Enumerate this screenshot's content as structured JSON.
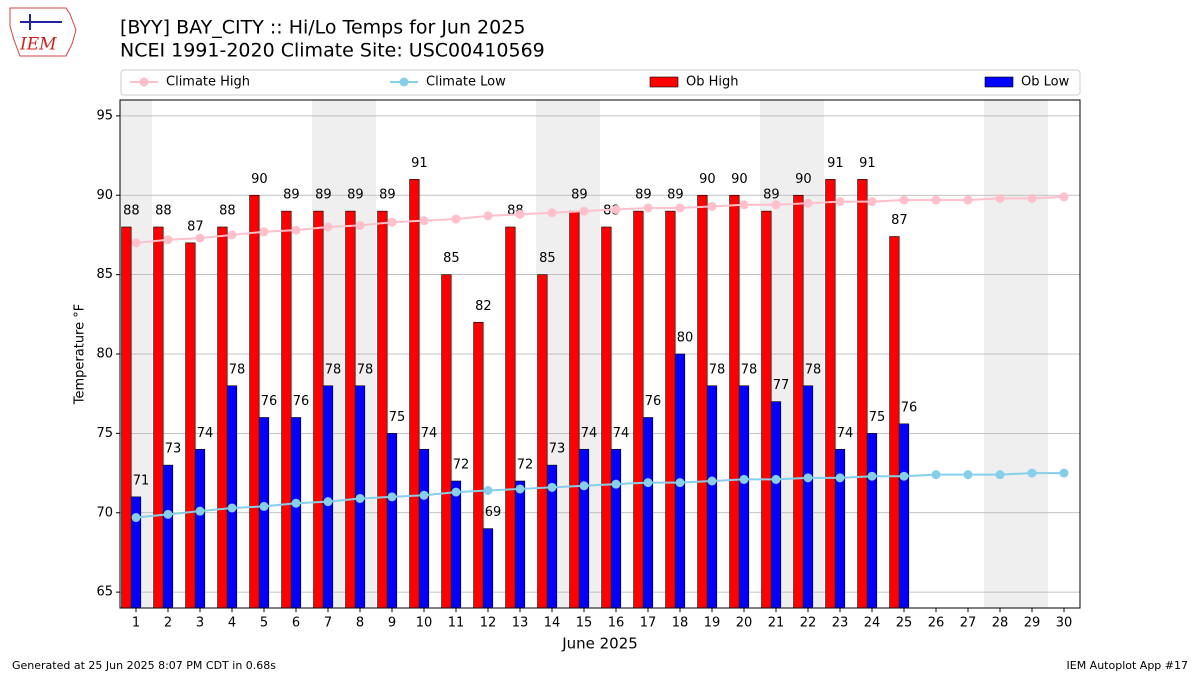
{
  "chart_data": {
    "type": "bar",
    "title": "[BYY] BAY_CITY :: Hi/Lo Temps for Jun 2025",
    "subtitle": "NCEI 1991-2020 Climate Site: USC00410569",
    "x_label": "June 2025",
    "y_label": "Temperature °F",
    "logo_text": "IEM",
    "footer_left": "Generated at 25 Jun 2025 8:07 PM CDT in 0.68s",
    "footer_right": "IEM Autoplot App #17",
    "x": [
      1,
      2,
      3,
      4,
      5,
      6,
      7,
      8,
      9,
      10,
      11,
      12,
      13,
      14,
      15,
      16,
      17,
      18,
      19,
      20,
      21,
      22,
      23,
      24,
      25,
      26,
      27,
      28,
      29,
      30
    ],
    "xlim": [
      0.5,
      30.5
    ],
    "xticks": [
      1,
      2,
      3,
      4,
      5,
      6,
      7,
      8,
      9,
      10,
      11,
      12,
      13,
      14,
      15,
      16,
      17,
      18,
      19,
      20,
      21,
      22,
      23,
      24,
      25,
      26,
      27,
      28,
      29,
      30
    ],
    "ylim": [
      64,
      96
    ],
    "yticks": [
      65,
      70,
      75,
      80,
      85,
      90,
      95
    ],
    "grid": true,
    "legend": "top",
    "shaded_days": [
      1,
      7,
      8,
      14,
      15,
      21,
      22,
      28,
      29
    ],
    "shade_color": "#efefef",
    "series": [
      {
        "name": "Climate High",
        "type": "line",
        "color": "#ffc0cb",
        "values": [
          87.0,
          87.2,
          87.3,
          87.5,
          87.7,
          87.8,
          88.0,
          88.1,
          88.3,
          88.4,
          88.5,
          88.7,
          88.8,
          88.9,
          89.0,
          89.1,
          89.2,
          89.2,
          89.3,
          89.4,
          89.4,
          89.5,
          89.6,
          89.6,
          89.7,
          89.7,
          89.7,
          89.8,
          89.8,
          89.9
        ]
      },
      {
        "name": "Climate Low",
        "type": "line",
        "color": "#87ceeb",
        "values": [
          69.7,
          69.9,
          70.1,
          70.3,
          70.4,
          70.6,
          70.7,
          70.9,
          71.0,
          71.1,
          71.3,
          71.4,
          71.5,
          71.6,
          71.7,
          71.8,
          71.9,
          71.9,
          72.0,
          72.1,
          72.1,
          72.2,
          72.2,
          72.3,
          72.3,
          72.4,
          72.4,
          72.4,
          72.5,
          72.5
        ]
      },
      {
        "name": "Ob High",
        "type": "bar",
        "color": "#ff0000",
        "values": [
          88,
          88,
          87,
          88,
          90,
          89,
          89,
          89,
          89,
          91,
          85,
          82,
          88,
          85,
          89,
          88,
          89,
          89,
          90,
          90,
          89,
          90,
          91,
          91,
          87.4,
          null,
          null,
          null,
          null,
          null
        ],
        "value_labels": [
          "88",
          "88",
          "87",
          "88",
          "90",
          "89",
          "89",
          "89",
          "89",
          "91",
          "85",
          "82",
          "88",
          "85",
          "89",
          "88",
          "89",
          "89",
          "90",
          "90",
          "89",
          "90",
          "91",
          "91",
          "87",
          null,
          null,
          null,
          null,
          null
        ]
      },
      {
        "name": "Ob Low",
        "type": "bar",
        "color": "#0000ff",
        "values": [
          71,
          73,
          74,
          78,
          76,
          76,
          78,
          78,
          75,
          74,
          72,
          69,
          72,
          73,
          74,
          74,
          76,
          80,
          78,
          78,
          77,
          78,
          74,
          75,
          75.6,
          null,
          null,
          null,
          null,
          null
        ],
        "value_labels": [
          "71",
          "73",
          "74",
          "78",
          "76",
          "76",
          "78",
          "78",
          "75",
          "74",
          "72",
          "69",
          "72",
          "73",
          "74",
          "74",
          "76",
          "80",
          "78",
          "78",
          "77",
          "78",
          "74",
          "75",
          "76",
          null,
          null,
          null,
          null,
          null
        ]
      }
    ]
  }
}
